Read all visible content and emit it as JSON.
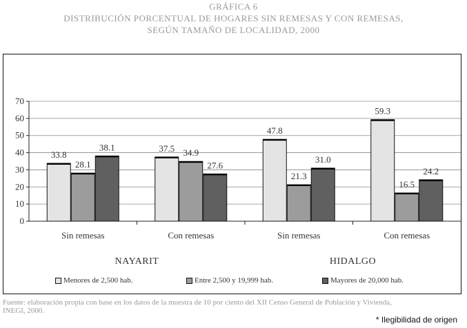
{
  "title_line1": "GRÁFICA 6",
  "title_line2": "DISTRIBUCIÓN PORCENTUAL DE HOGARES SIN REMESAS Y CON REMESAS,",
  "title_line3": "SEGÚN TAMAÑO DE LOCALIDAD, 2000",
  "source_line1": "Fuente: elaboración propia con base en los datos de la muestra de 10 por ciento del XII Censo General de Población y Vivienda,",
  "source_line2": "INEGI, 2000.",
  "note": "* Ilegibilidad de origen",
  "colors": [
    "#e4e4e4",
    "#9c9c9c",
    "#606060"
  ],
  "chart_data": {
    "type": "bar",
    "categories": [
      "Sin remesas",
      "Con remesas",
      "Sin remesas",
      "Con remesas"
    ],
    "groups": [
      "NAYARIT",
      "HIDALGO"
    ],
    "series": [
      {
        "name": "Menores de 2,500 hab.",
        "values": [
          33.8,
          37.5,
          47.8,
          59.3
        ],
        "labels": [
          "33.8",
          "37.5",
          "47.8",
          "59.3"
        ]
      },
      {
        "name": "Entre 2,500 y 19,999 hab.",
        "values": [
          28.1,
          34.9,
          21.3,
          16.5
        ],
        "labels": [
          "28.1",
          "34.9",
          "21.3",
          "16.5"
        ]
      },
      {
        "name": "Mayores de 20,000 hab.",
        "values": [
          38.1,
          27.6,
          31.0,
          24.2
        ],
        "labels": [
          "38.1",
          "27.6",
          "31.0",
          "24.2"
        ]
      }
    ],
    "yticks": [
      "0",
      "10",
      "20",
      "30",
      "40",
      "50",
      "60",
      "70"
    ],
    "ylim": [
      0,
      70
    ],
    "grid": true,
    "legend_position": "bottom"
  }
}
